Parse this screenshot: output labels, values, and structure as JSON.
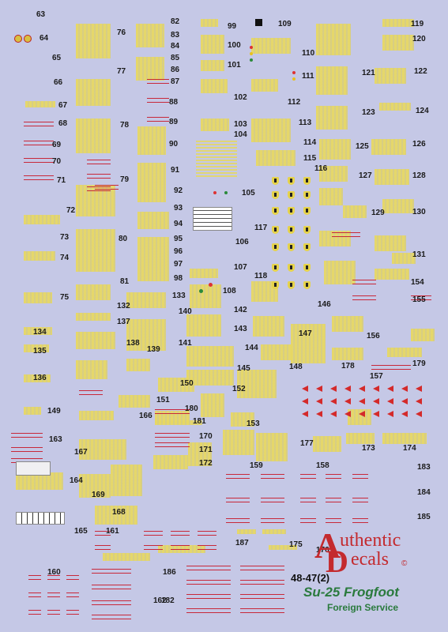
{
  "sheet": {
    "code": "48-47(2)",
    "brand_line1": "uthentic",
    "brand_line2": "ecals",
    "brand_initial1": "A",
    "brand_initial2": "D",
    "copyright": "©",
    "title": "Su-25 Frogfoot",
    "subtitle": "Foreign Service"
  },
  "colors": {
    "background": "#c5c8e6",
    "decal_yellow": "#e3d76b",
    "stencil_red": "#c8283a",
    "title_green": "#2a7a3d"
  },
  "numbers": [
    "63",
    "64",
    "65",
    "66",
    "67",
    "68",
    "69",
    "70",
    "71",
    "72",
    "73",
    "74",
    "75",
    "76",
    "77",
    "78",
    "79",
    "80",
    "81",
    "82",
    "83",
    "84",
    "85",
    "86",
    "87",
    "88",
    "89",
    "90",
    "91",
    "92",
    "93",
    "94",
    "95",
    "96",
    "97",
    "98",
    "99",
    "100",
    "101",
    "102",
    "103",
    "104",
    "105",
    "106",
    "107",
    "108",
    "109",
    "110",
    "111",
    "112",
    "113",
    "114",
    "115",
    "116",
    "117",
    "118",
    "119",
    "120",
    "121",
    "122",
    "123",
    "124",
    "125",
    "126",
    "127",
    "128",
    "129",
    "130",
    "131",
    "132",
    "133",
    "134",
    "135",
    "136",
    "137",
    "138",
    "139",
    "140",
    "141",
    "142",
    "143",
    "144",
    "145",
    "146",
    "147",
    "148",
    "149",
    "150",
    "151",
    "152",
    "153",
    "154",
    "155",
    "156",
    "157",
    "158",
    "159",
    "160",
    "161",
    "162",
    "163",
    "164",
    "165",
    "166",
    "167",
    "168",
    "169",
    "170",
    "171",
    "172",
    "173",
    "174",
    "175",
    "176",
    "177",
    "178",
    "179",
    "180",
    "181",
    "182",
    "183",
    "184",
    "185",
    "186",
    "187"
  ]
}
